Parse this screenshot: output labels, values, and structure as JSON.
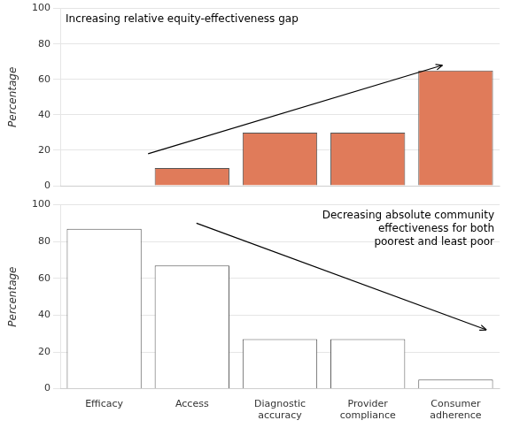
{
  "chart_data": [
    {
      "type": "bar",
      "categories": [
        "Efficacy",
        "Access",
        "Diagnostic\naccuracy",
        "Provider\ncompliance",
        "Consumer\nadherence"
      ],
      "values": [
        0,
        10,
        30,
        30,
        65
      ],
      "color": "#E07B5A",
      "ylabel": "Percentage",
      "annotation": "Increasing relative equity-effectiveness gap",
      "ylim": [
        0,
        100
      ],
      "yticks": [
        0,
        20,
        40,
        60,
        80,
        100
      ],
      "grid": true,
      "tick_labels": "y"
    },
    {
      "type": "bar",
      "categories": [
        "Efficacy",
        "Access",
        "Diagnostic\naccuracy",
        "Provider\ncompliance",
        "Consumer\nadherence"
      ],
      "values": [
        87,
        67,
        27,
        27,
        5
      ],
      "color": "#FFFFFF",
      "ylabel": "Percentage",
      "annotation": "Decreasing absolute community\neffectiveness for both\npoorest and least poor",
      "ylim": [
        0,
        100
      ],
      "yticks": [
        0,
        20,
        40,
        60,
        80,
        100
      ],
      "grid": true
    }
  ]
}
